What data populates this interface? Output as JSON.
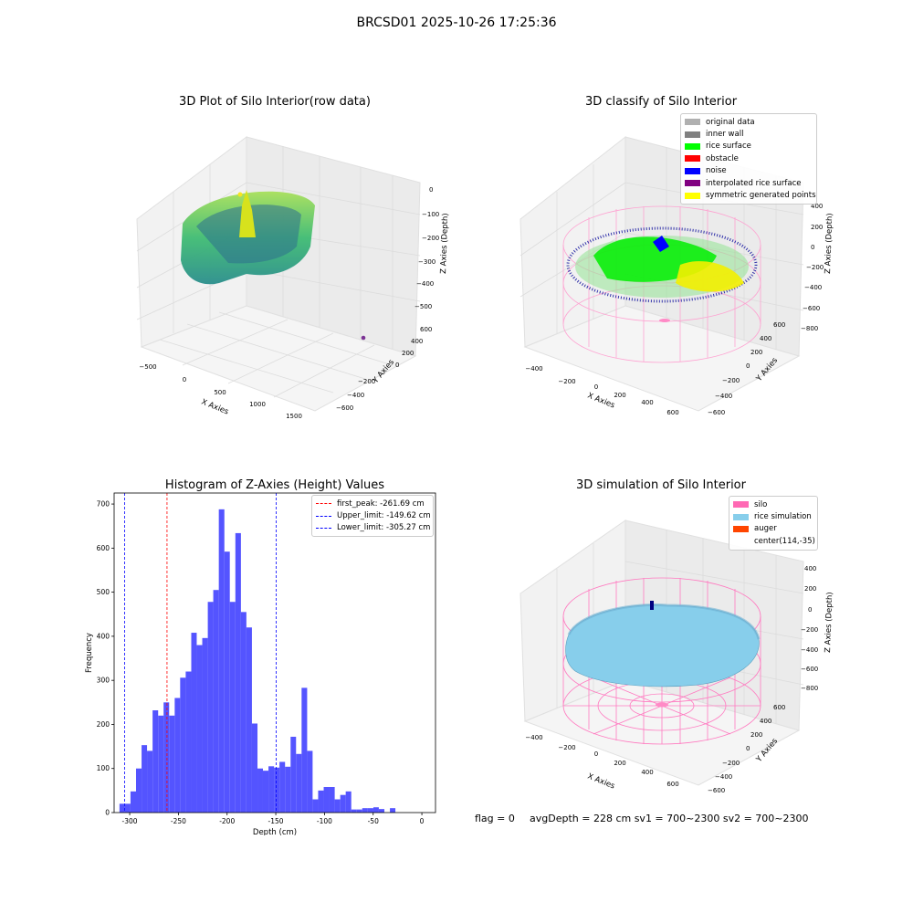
{
  "suptitle": "BRCSD01 2025-10-26 17:25:36",
  "plot1": {
    "title": "3D Plot of Silo Interior(row data)",
    "xlabel": "X Axies",
    "ylabel": "Y Axies",
    "zlabel": "Z Axies (Depth)",
    "xticks": [
      "−500",
      "0",
      "500",
      "1000",
      "1500"
    ],
    "yticks": [
      "600",
      "400",
      "200",
      "0",
      "−200",
      "−400",
      "−600"
    ],
    "zticks": [
      "0",
      "−100",
      "−200",
      "−300",
      "−400",
      "−500"
    ]
  },
  "plot2": {
    "title": "3D classify of Silo Interior",
    "xlabel": "X Axies",
    "ylabel": "Y Axies",
    "zlabel": "Z Axies (Depth)",
    "xticks": [
      "−400",
      "−200",
      "0",
      "200",
      "400",
      "600"
    ],
    "yticks": [
      "600",
      "400",
      "200",
      "0",
      "−200",
      "−400",
      "−600"
    ],
    "zticks": [
      "400",
      "200",
      "0",
      "−200",
      "−400",
      "−600",
      "−800"
    ],
    "legend": [
      {
        "label": "original data",
        "color": "#b0b0b0"
      },
      {
        "label": "inner wall",
        "color": "#808080"
      },
      {
        "label": "rice surface",
        "color": "#00ff00"
      },
      {
        "label": "obstacle",
        "color": "#ff0000"
      },
      {
        "label": "noise",
        "color": "#0000ff"
      },
      {
        "label": "interpolated rice surface",
        "color": "#800080"
      },
      {
        "label": "symmetric generated points",
        "color": "#ffff00"
      }
    ]
  },
  "plot4": {
    "title": "3D simulation of Silo Interior",
    "xlabel": "X Axies",
    "ylabel": "Y Axies",
    "zlabel": "Z Axies (Depth)",
    "xticks": [
      "−400",
      "−200",
      "0",
      "200",
      "400",
      "600"
    ],
    "yticks": [
      "600",
      "400",
      "200",
      "0",
      "−200",
      "−400",
      "−600"
    ],
    "zticks": [
      "400",
      "200",
      "0",
      "−200",
      "−400",
      "−600",
      "−800"
    ],
    "legend": [
      {
        "label": "silo",
        "color": "#ff69b4"
      },
      {
        "label": "rice simulation",
        "color": "#87ceeb"
      },
      {
        "label": "auger",
        "color": "#ff4500"
      },
      {
        "label": "center(114,-35)",
        "color": ""
      }
    ]
  },
  "footer": {
    "flag": "flag = 0",
    "avg": "avgDepth = 228 cm  sv1 = 700~2300  sv2 = 700~2300"
  },
  "chart_data": [
    {
      "type": "bar",
      "title": "Histogram of Z-Axies (Height) Values",
      "xlabel": "Depth (cm)",
      "ylabel": "Frequency",
      "bar_color": "#4b4bff",
      "xlim": [
        -316,
        14
      ],
      "ylim": [
        0,
        725
      ],
      "xticks": [
        -300,
        -250,
        -200,
        -150,
        -100,
        -50,
        0
      ],
      "yticks": [
        0,
        100,
        200,
        300,
        400,
        500,
        600,
        700
      ],
      "bins": [
        {
          "x0": -310.5,
          "x1": -304.8,
          "v": 20
        },
        {
          "x0": -304.8,
          "x1": -299.2,
          "v": 20
        },
        {
          "x0": -299.2,
          "x1": -293.5,
          "v": 48
        },
        {
          "x0": -293.5,
          "x1": -287.8,
          "v": 100
        },
        {
          "x0": -287.8,
          "x1": -282.2,
          "v": 153
        },
        {
          "x0": -282.2,
          "x1": -276.5,
          "v": 140
        },
        {
          "x0": -276.5,
          "x1": -270.8,
          "v": 232
        },
        {
          "x0": -270.8,
          "x1": -265.2,
          "v": 220
        },
        {
          "x0": -265.2,
          "x1": -259.5,
          "v": 250
        },
        {
          "x0": -259.5,
          "x1": -253.8,
          "v": 220
        },
        {
          "x0": -253.8,
          "x1": -248.2,
          "v": 260
        },
        {
          "x0": -248.2,
          "x1": -242.5,
          "v": 306
        },
        {
          "x0": -242.5,
          "x1": -236.8,
          "v": 320
        },
        {
          "x0": -236.8,
          "x1": -231.2,
          "v": 408
        },
        {
          "x0": -231.2,
          "x1": -225.5,
          "v": 380
        },
        {
          "x0": -225.5,
          "x1": -219.8,
          "v": 396
        },
        {
          "x0": -219.8,
          "x1": -214.2,
          "v": 478
        },
        {
          "x0": -214.2,
          "x1": -208.5,
          "v": 505
        },
        {
          "x0": -208.5,
          "x1": -202.8,
          "v": 688
        },
        {
          "x0": -202.8,
          "x1": -197.2,
          "v": 592
        },
        {
          "x0": -197.2,
          "x1": -191.5,
          "v": 478
        },
        {
          "x0": -191.5,
          "x1": -185.8,
          "v": 634
        },
        {
          "x0": -185.8,
          "x1": -180.2,
          "v": 455
        },
        {
          "x0": -180.2,
          "x1": -174.5,
          "v": 420
        },
        {
          "x0": -174.5,
          "x1": -168.8,
          "v": 202
        },
        {
          "x0": -168.8,
          "x1": -163.2,
          "v": 100
        },
        {
          "x0": -163.2,
          "x1": -157.5,
          "v": 95
        },
        {
          "x0": -157.5,
          "x1": -151.8,
          "v": 105
        },
        {
          "x0": -151.8,
          "x1": -146.2,
          "v": 102
        },
        {
          "x0": -146.2,
          "x1": -140.5,
          "v": 115
        },
        {
          "x0": -140.5,
          "x1": -134.8,
          "v": 104
        },
        {
          "x0": -134.8,
          "x1": -129.2,
          "v": 172
        },
        {
          "x0": -129.2,
          "x1": -123.5,
          "v": 133
        },
        {
          "x0": -123.5,
          "x1": -117.8,
          "v": 283
        },
        {
          "x0": -117.8,
          "x1": -112.2,
          "v": 140
        },
        {
          "x0": -112.2,
          "x1": -106.5,
          "v": 30
        },
        {
          "x0": -106.5,
          "x1": -100.8,
          "v": 50
        },
        {
          "x0": -100.8,
          "x1": -95.2,
          "v": 58
        },
        {
          "x0": -95.2,
          "x1": -89.5,
          "v": 58
        },
        {
          "x0": -89.5,
          "x1": -83.8,
          "v": 30
        },
        {
          "x0": -83.8,
          "x1": -78.2,
          "v": 40
        },
        {
          "x0": -78.2,
          "x1": -72.5,
          "v": 48
        },
        {
          "x0": -72.5,
          "x1": -66.8,
          "v": 7
        },
        {
          "x0": -66.8,
          "x1": -61.2,
          "v": 7
        },
        {
          "x0": -61.2,
          "x1": -55.5,
          "v": 10
        },
        {
          "x0": -55.5,
          "x1": -49.8,
          "v": 10
        },
        {
          "x0": -49.8,
          "x1": -44.2,
          "v": 12
        },
        {
          "x0": -44.2,
          "x1": -38.5,
          "v": 8
        },
        {
          "x0": -32.8,
          "x1": -27.2,
          "v": 10
        }
      ],
      "vlines": [
        {
          "label": "first_peak: -261.69 cm",
          "x": -261.69,
          "color": "#ff0000"
        },
        {
          "label": "Upper_limit: -149.62 cm",
          "x": -149.62,
          "color": "#0000ff"
        },
        {
          "label": "Lower_limit: -305.27 cm",
          "x": -305.27,
          "color": "#0000ff"
        }
      ]
    }
  ]
}
